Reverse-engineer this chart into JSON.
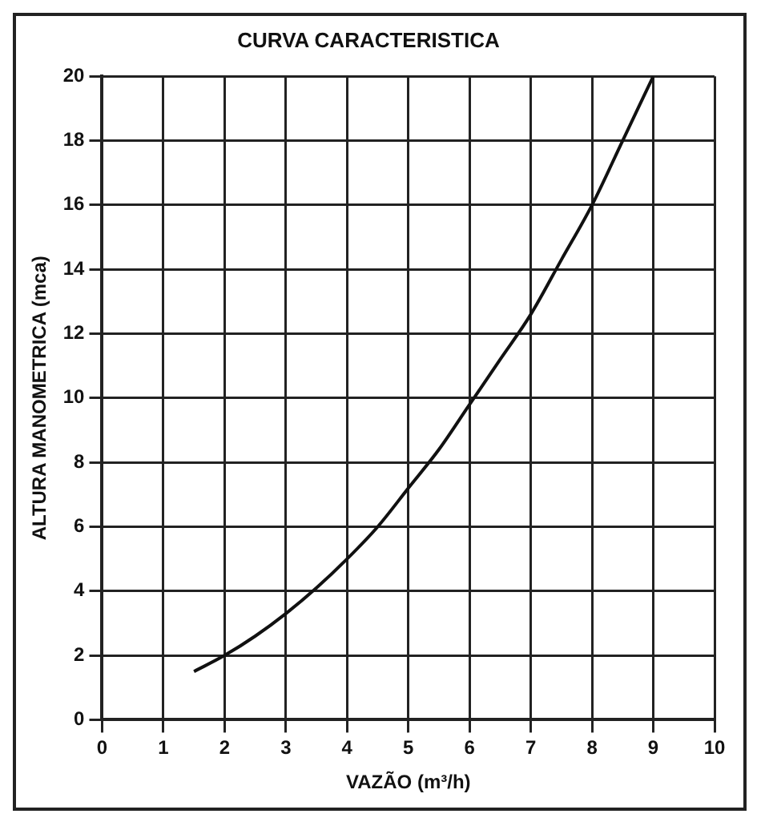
{
  "chart_data": {
    "type": "line",
    "title": "CURVA CARACTERISTICA",
    "xlabel": "VAZÃO (m³/h)",
    "ylabel": "ALTURA MANOMETRICA (mca)",
    "x": [
      1.5,
      2,
      2.5,
      3,
      3.5,
      4,
      4.5,
      5,
      5.5,
      6,
      6.5,
      7,
      7.5,
      8,
      8.5,
      9
    ],
    "series": [
      {
        "color": "#111111",
        "values": [
          1.5,
          2,
          2.6,
          3.3,
          4.1,
          5,
          6,
          7.2,
          8.4,
          9.8,
          11.2,
          12.6,
          14.3,
          16,
          18,
          20
        ]
      }
    ],
    "xlim": [
      0,
      10
    ],
    "xticks": [
      0,
      1,
      2,
      3,
      4,
      5,
      6,
      7,
      8,
      9,
      10
    ],
    "ylim": [
      0,
      20
    ],
    "yticks": [
      0,
      2,
      4,
      6,
      8,
      10,
      12,
      14,
      16,
      18,
      20
    ],
    "grid": true,
    "legend": false,
    "marker": "none",
    "line_style": "solid"
  }
}
